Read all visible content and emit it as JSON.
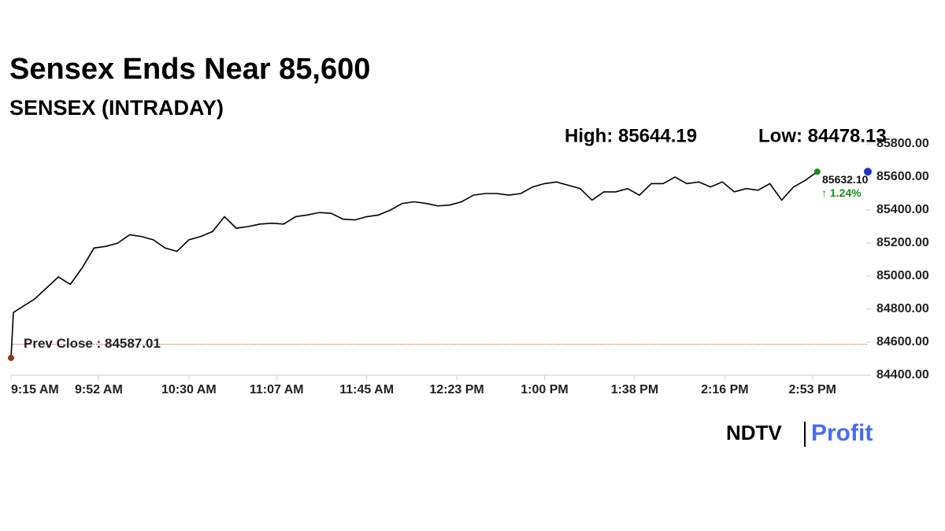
{
  "chart_data": {
    "type": "line",
    "title": "Sensex Ends Near 85,600",
    "subtitle": "SENSEX (INTRADAY)",
    "high": {
      "value": 85644.19,
      "label": "High: 85644.19"
    },
    "low": {
      "value": 84478.13,
      "label": "Low: 84478.13"
    },
    "prev_close": {
      "value": 84587.01,
      "label": "Prev Close : 84587.01"
    },
    "last": {
      "value": 85632.1,
      "label": "85632.10"
    },
    "change": {
      "value": 1.24,
      "label": "↑ 1.24%"
    },
    "logo": {
      "left": "NDTV",
      "right": "Profit"
    },
    "x": [
      "9:15 AM",
      "9:16 AM",
      "9:25 AM",
      "9:35 AM",
      "9:40 AM",
      "9:45 AM",
      "9:50 AM",
      "9:55 AM",
      "10:00 AM",
      "10:05 AM",
      "10:10 AM",
      "10:15 AM",
      "10:20 AM",
      "10:25 AM",
      "10:30 AM",
      "10:35 AM",
      "10:40 AM",
      "10:45 AM",
      "10:50 AM",
      "10:55 AM",
      "11:00 AM",
      "11:05 AM",
      "11:10 AM",
      "11:15 AM",
      "11:20 AM",
      "11:25 AM",
      "11:30 AM",
      "11:35 AM",
      "11:40 AM",
      "11:45 AM",
      "11:50 AM",
      "11:55 AM",
      "12:00 PM",
      "12:05 PM",
      "12:10 PM",
      "12:15 PM",
      "12:20 PM",
      "12:25 PM",
      "12:30 PM",
      "12:35 PM",
      "12:40 PM",
      "12:45 PM",
      "12:50 PM",
      "12:55 PM",
      "1:00 PM",
      "1:05 PM",
      "1:10 PM",
      "1:15 PM",
      "1:20 PM",
      "1:25 PM",
      "1:30 PM",
      "1:35 PM",
      "1:40 PM",
      "1:45 PM",
      "1:50 PM",
      "1:55 PM",
      "2:00 PM",
      "2:05 PM",
      "2:10 PM",
      "2:15 PM",
      "2:20 PM",
      "2:25 PM",
      "2:30 PM",
      "2:35 PM",
      "2:40 PM",
      "2:45 PM",
      "2:50 PM",
      "2:55 PM"
    ],
    "series": [
      {
        "name": "SENSEX",
        "color": "#000000",
        "values": [
          84505,
          84780,
          84862,
          84995,
          84950,
          85050,
          85170,
          85180,
          85200,
          85250,
          85240,
          85220,
          85170,
          85150,
          85220,
          85240,
          85270,
          85360,
          85290,
          85300,
          85315,
          85320,
          85315,
          85360,
          85370,
          85385,
          85380,
          85345,
          85340,
          85360,
          85370,
          85400,
          85440,
          85450,
          85440,
          85425,
          85430,
          85450,
          85490,
          85500,
          85500,
          85490,
          85500,
          85540,
          85560,
          85570,
          85550,
          85530,
          85460,
          85510,
          85510,
          85530,
          85490,
          85560,
          85560,
          85600,
          85560,
          85570,
          85540,
          85570,
          85510,
          85530,
          85520,
          85560,
          85460,
          85540,
          85580,
          85632.1
        ]
      }
    ],
    "xlim": [
      "9:15 AM",
      "3:15 PM"
    ],
    "xticks": [
      "9:15 AM",
      "9:52 AM",
      "10:30 AM",
      "11:07 AM",
      "11:45 AM",
      "12:23 PM",
      "1:00 PM",
      "1:38 PM",
      "2:16 PM",
      "2:53 PM"
    ],
    "ylim": [
      84400,
      85800
    ],
    "yticks": [
      {
        "value": 84400,
        "label": "84400.00"
      },
      {
        "value": 84600,
        "label": "84600.00"
      },
      {
        "value": 84800,
        "label": "84800.00"
      },
      {
        "value": 85000,
        "label": "85000.00"
      },
      {
        "value": 85200,
        "label": "85200.00"
      },
      {
        "value": 85400,
        "label": "85400.00"
      },
      {
        "value": 85600,
        "label": "85600.00"
      },
      {
        "value": 85800,
        "label": "85800.00"
      }
    ]
  }
}
